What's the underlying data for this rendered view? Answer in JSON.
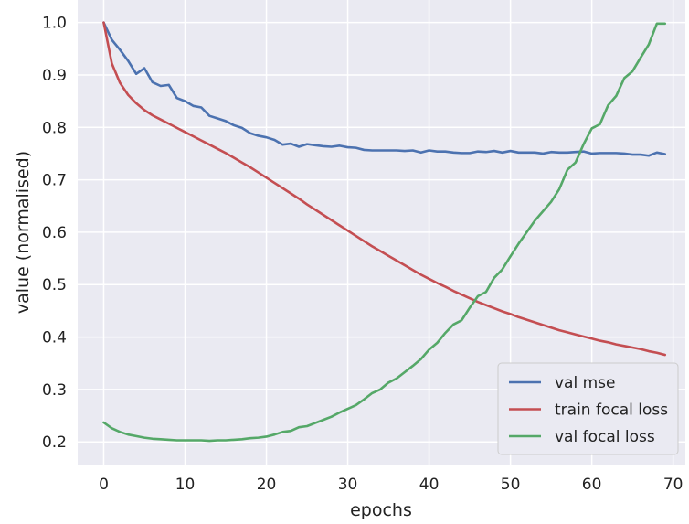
{
  "chart_data": {
    "type": "line",
    "title": "",
    "xlabel": "epochs",
    "ylabel": "value (normalised)",
    "xlim": [
      -3.2,
      71.5
    ],
    "ylim": [
      0.155,
      1.043
    ],
    "xticks": [
      0,
      10,
      20,
      30,
      40,
      50,
      60,
      70
    ],
    "yticks": [
      0.2,
      0.3,
      0.4,
      0.5,
      0.6,
      0.7,
      0.8,
      0.9,
      1.0
    ],
    "xtick_labels": [
      "0",
      "10",
      "20",
      "30",
      "40",
      "50",
      "60",
      "70"
    ],
    "ytick_labels": [
      "0.2",
      "0.3",
      "0.4",
      "0.5",
      "0.6",
      "0.7",
      "0.8",
      "0.9",
      "1.0"
    ],
    "grid": true,
    "legend_position": "bottom-right",
    "x": [
      0,
      1,
      2,
      3,
      4,
      5,
      6,
      7,
      8,
      9,
      10,
      11,
      12,
      13,
      14,
      15,
      16,
      17,
      18,
      19,
      20,
      21,
      22,
      23,
      24,
      25,
      26,
      27,
      28,
      29,
      30,
      31,
      32,
      33,
      34,
      35,
      36,
      37,
      38,
      39,
      40,
      41,
      42,
      43,
      44,
      45,
      46,
      47,
      48,
      49,
      50,
      51,
      52,
      53,
      54,
      55,
      56,
      57,
      58,
      59,
      60,
      61,
      62,
      63,
      64,
      65,
      66,
      67,
      68,
      69
    ],
    "series": [
      {
        "name": "val mse",
        "color": "#4c72b0",
        "values": [
          1.0,
          0.967,
          0.948,
          0.927,
          0.902,
          0.913,
          0.886,
          0.879,
          0.881,
          0.856,
          0.85,
          0.841,
          0.838,
          0.822,
          0.817,
          0.812,
          0.804,
          0.799,
          0.789,
          0.784,
          0.781,
          0.776,
          0.767,
          0.769,
          0.763,
          0.768,
          0.766,
          0.764,
          0.763,
          0.765,
          0.762,
          0.761,
          0.757,
          0.756,
          0.756,
          0.756,
          0.756,
          0.755,
          0.756,
          0.752,
          0.756,
          0.754,
          0.754,
          0.752,
          0.751,
          0.751,
          0.754,
          0.753,
          0.755,
          0.752,
          0.755,
          0.752,
          0.752,
          0.752,
          0.75,
          0.753,
          0.752,
          0.752,
          0.753,
          0.754,
          0.75,
          0.751,
          0.751,
          0.751,
          0.75,
          0.748,
          0.748,
          0.746,
          0.752,
          0.749
        ]
      },
      {
        "name": "train focal loss",
        "color": "#c44e52",
        "values": [
          1.0,
          0.922,
          0.885,
          0.862,
          0.846,
          0.833,
          0.823,
          0.815,
          0.807,
          0.799,
          0.791,
          0.783,
          0.775,
          0.767,
          0.759,
          0.751,
          0.742,
          0.733,
          0.724,
          0.714,
          0.704,
          0.694,
          0.684,
          0.674,
          0.664,
          0.653,
          0.643,
          0.633,
          0.623,
          0.613,
          0.603,
          0.593,
          0.583,
          0.573,
          0.564,
          0.555,
          0.546,
          0.537,
          0.528,
          0.519,
          0.511,
          0.503,
          0.496,
          0.488,
          0.481,
          0.474,
          0.467,
          0.461,
          0.455,
          0.449,
          0.444,
          0.438,
          0.433,
          0.428,
          0.423,
          0.418,
          0.413,
          0.409,
          0.405,
          0.401,
          0.397,
          0.393,
          0.39,
          0.386,
          0.383,
          0.38,
          0.377,
          0.373,
          0.37,
          0.366
        ]
      },
      {
        "name": "val focal loss",
        "color": "#55a868",
        "values": [
          0.237,
          0.226,
          0.219,
          0.214,
          0.211,
          0.208,
          0.206,
          0.205,
          0.204,
          0.203,
          0.203,
          0.203,
          0.203,
          0.202,
          0.203,
          0.203,
          0.204,
          0.205,
          0.207,
          0.208,
          0.21,
          0.214,
          0.219,
          0.221,
          0.228,
          0.23,
          0.236,
          0.242,
          0.248,
          0.256,
          0.263,
          0.27,
          0.281,
          0.293,
          0.3,
          0.313,
          0.321,
          0.333,
          0.345,
          0.358,
          0.376,
          0.389,
          0.408,
          0.424,
          0.432,
          0.456,
          0.478,
          0.486,
          0.513,
          0.529,
          0.554,
          0.578,
          0.6,
          0.622,
          0.64,
          0.658,
          0.682,
          0.719,
          0.733,
          0.768,
          0.798,
          0.806,
          0.842,
          0.86,
          0.894,
          0.907,
          0.933,
          0.958,
          0.998,
          0.998
        ]
      }
    ]
  }
}
